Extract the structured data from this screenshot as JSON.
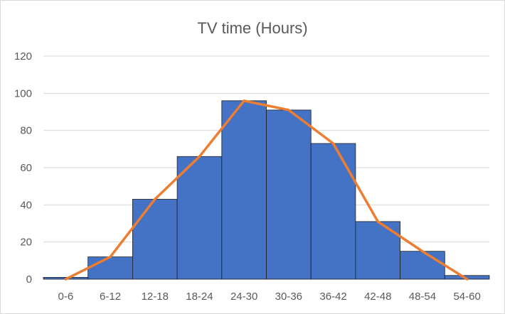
{
  "chart_data": {
    "type": "bar",
    "title": "TV time (Hours)",
    "xlabel": "",
    "ylabel": "",
    "categories": [
      "0-6",
      "6-12",
      "12-18",
      "18-24",
      "24-30",
      "30-36",
      "36-42",
      "42-48",
      "48-54",
      "54-60"
    ],
    "series": [
      {
        "type": "bar",
        "values": [
          1,
          12,
          43,
          66,
          96,
          91,
          73,
          31,
          15,
          2
        ],
        "color": "#4472c4"
      },
      {
        "type": "line",
        "values": [
          1,
          12,
          43,
          66,
          96,
          91,
          73,
          31,
          15,
          2
        ],
        "color": "#ed7d31"
      }
    ],
    "ylim": [
      0,
      120
    ],
    "yticks": [
      0,
      20,
      40,
      60,
      80,
      100,
      120
    ],
    "grid": true,
    "legend": "none"
  }
}
